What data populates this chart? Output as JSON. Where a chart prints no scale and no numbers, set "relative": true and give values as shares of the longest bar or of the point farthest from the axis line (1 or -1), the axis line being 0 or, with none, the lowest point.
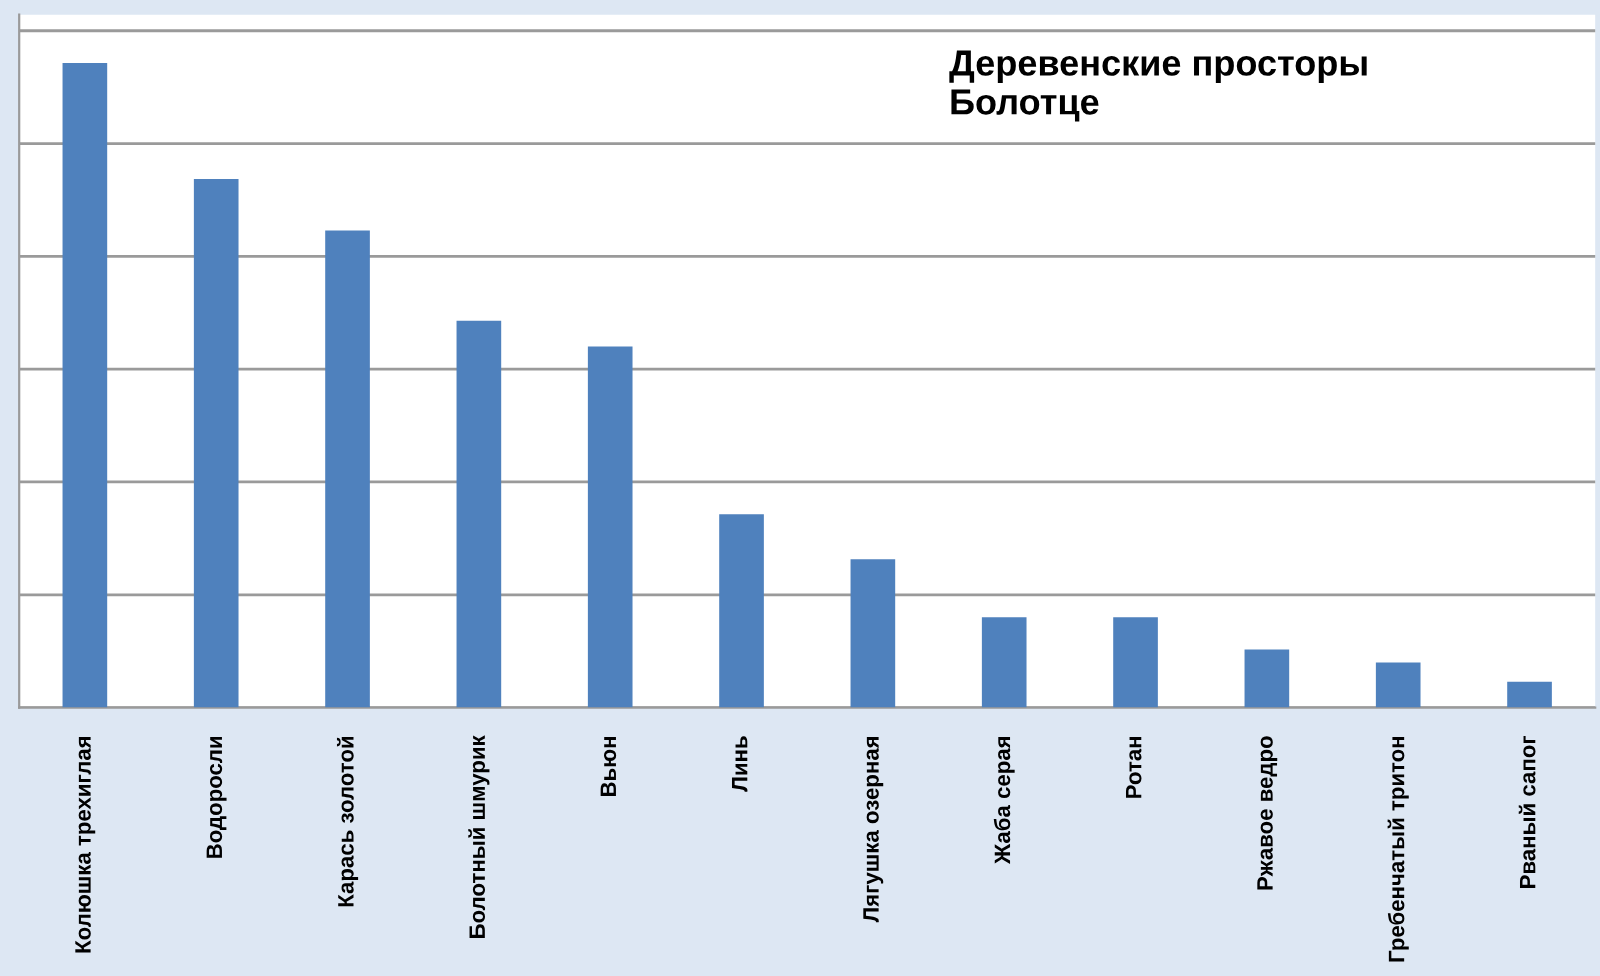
{
  "chart_data": {
    "type": "bar",
    "title": "Деревенские просторы\nБолотце",
    "relative": true,
    "grid": "y",
    "color": "#4f81bd",
    "categories": [
      "Колюшка трехиглая",
      "Водоросли",
      "Карась золотой",
      "Болотный шмурик",
      "Вьюн",
      "Линь",
      "Лягушка озерная",
      "Жаба серая",
      "Ротан",
      "Ржавое ведро",
      "Гребенчатый тритон",
      "Рваный сапог"
    ],
    "values": [
      1,
      0.82,
      0.74,
      0.6,
      0.56,
      0.3,
      0.23,
      0.14,
      0.14,
      0.09,
      0.07,
      0.04
    ]
  }
}
